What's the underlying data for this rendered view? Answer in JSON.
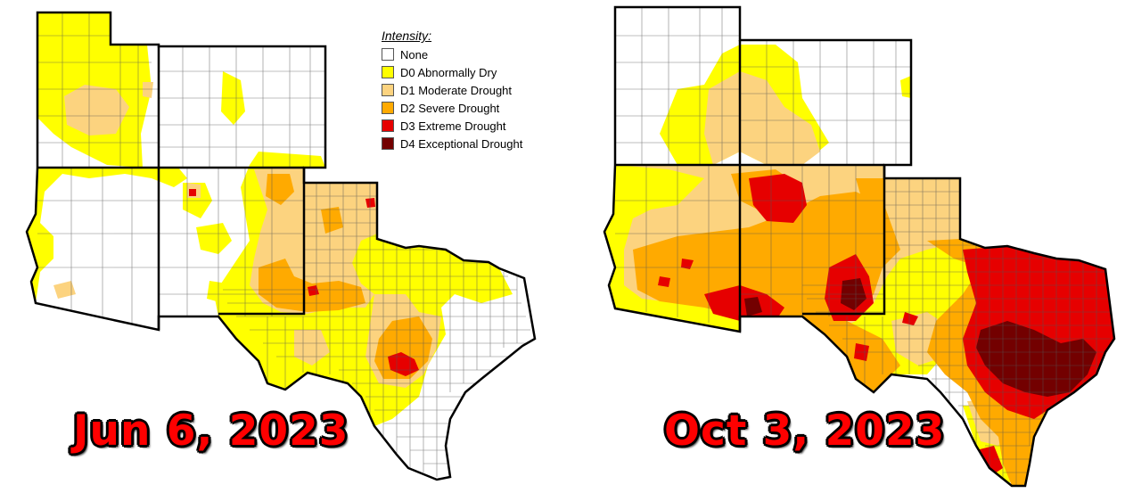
{
  "legend": {
    "title": "Intensity:",
    "items": [
      {
        "label": "None",
        "color": "#ffffff"
      },
      {
        "label": "D0 Abnormally Dry",
        "color": "#ffff00"
      },
      {
        "label": "D1 Moderate Drought",
        "color": "#fcd37f"
      },
      {
        "label": "D2 Severe Drought",
        "color": "#ffaa00"
      },
      {
        "label": "D3 Extreme Drought",
        "color": "#e60000"
      },
      {
        "label": "D4 Exceptional Drought",
        "color": "#730000"
      }
    ]
  },
  "maps": [
    {
      "date_label": "Jun 6, 2023"
    },
    {
      "date_label": "Oct 3, 2023"
    }
  ],
  "colors": {
    "none": "#ffffff",
    "d0": "#ffff00",
    "d1": "#fcd37f",
    "d2": "#ffaa00",
    "d3": "#e60000",
    "d4": "#730000",
    "border": "#000000",
    "county": "#555555",
    "date_text": "#ff0000"
  }
}
